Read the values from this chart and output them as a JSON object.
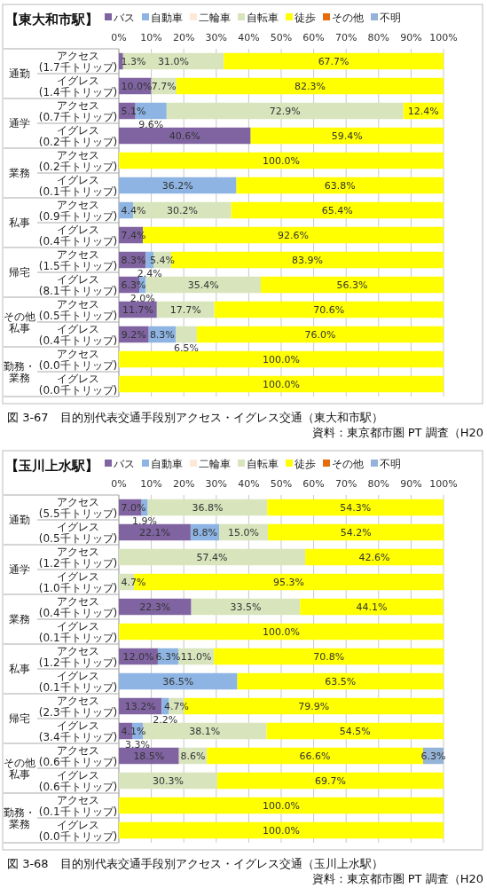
{
  "chart_data": [
    {
      "type": "bar",
      "orientation": "horizontal",
      "stacked": true,
      "title": "【東大和市駅】",
      "legend": "top",
      "grid": "x",
      "xlim": [
        0,
        100
      ],
      "xticks": [
        {
          "value": 0,
          "label": "0%"
        },
        {
          "value": 10,
          "label": "10%"
        },
        {
          "value": 20,
          "label": "20%"
        },
        {
          "value": 30,
          "label": "30%"
        },
        {
          "value": 40,
          "label": "40%"
        },
        {
          "value": 50,
          "label": "50%"
        },
        {
          "value": 60,
          "label": "60%"
        },
        {
          "value": 70,
          "label": "70%"
        },
        {
          "value": 80,
          "label": "80%"
        },
        {
          "value": 90,
          "label": "90%"
        },
        {
          "value": 100,
          "label": "100%"
        }
      ],
      "categories": [
        "アクセス\n(1.7千トリップ)",
        "イグレス\n(1.4千トリップ)",
        "アクセス\n(0.7千トリップ)",
        "イグレス\n(0.2千トリップ)",
        "アクセス\n(0.2千トリップ)",
        "イグレス\n(0.1千トリップ)",
        "アクセス\n(0.9千トリップ)",
        "イグレス\n(0.4千トリップ)",
        "アクセス\n(1.5千トリップ)",
        "イグレス\n(8.1千トリップ)",
        "アクセス\n(0.5千トリップ)",
        "イグレス\n(0.4千トリップ)",
        "アクセス\n(0.0千トリップ)",
        "イグレス\n(0.0千トリップ)"
      ],
      "series": [
        {
          "name": "バス",
          "color": "#8064a2",
          "values": [
            1.3,
            10.0,
            5.1,
            40.6,
            null,
            null,
            null,
            7.4,
            8.3,
            6.3,
            11.7,
            9.2,
            null,
            null
          ],
          "value_labels": [
            "1.3%",
            "10.0%",
            "5.1%",
            "40.6%",
            null,
            null,
            null,
            "7.4%",
            "8.3%",
            "6.3%",
            "11.7%",
            "9.2%",
            null,
            null
          ]
        },
        {
          "name": "自動車",
          "color": "#8db4e2",
          "values": [
            null,
            null,
            9.6,
            null,
            null,
            36.2,
            4.4,
            null,
            2.4,
            2.0,
            null,
            8.3,
            null,
            null
          ],
          "value_labels": [
            null,
            null,
            "9.6%",
            null,
            null,
            "36.2%",
            "4.4%",
            null,
            "2.4%",
            "2.0%",
            null,
            "8.3%",
            null,
            null
          ]
        },
        {
          "name": "二輪車",
          "color": "#fde9d9",
          "values": [
            null,
            null,
            null,
            null,
            null,
            null,
            null,
            null,
            null,
            null,
            null,
            null,
            null,
            null
          ],
          "value_labels": [
            null,
            null,
            null,
            null,
            null,
            null,
            null,
            null,
            null,
            null,
            null,
            null,
            null,
            null
          ]
        },
        {
          "name": "自転車",
          "color": "#d7e4bc",
          "values": [
            31.0,
            7.7,
            72.9,
            null,
            null,
            null,
            30.2,
            null,
            5.4,
            35.4,
            17.7,
            6.5,
            null,
            null
          ],
          "value_labels": [
            "31.0%",
            "7.7%",
            "72.9%",
            null,
            null,
            null,
            "30.2%",
            null,
            "5.4%",
            "35.4%",
            "17.7%",
            "6.5%",
            null,
            null
          ]
        },
        {
          "name": "徒歩",
          "color": "#ffff00",
          "values": [
            67.7,
            82.3,
            12.4,
            59.4,
            100.0,
            63.8,
            65.4,
            92.6,
            83.9,
            56.3,
            70.6,
            76.0,
            100.0,
            100.0
          ],
          "value_labels": [
            "67.7%",
            "82.3%",
            "12.4%",
            "59.4%",
            "100.0%",
            "63.8%",
            "65.4%",
            "92.6%",
            "83.9%",
            "56.3%",
            "70.6%",
            "76.0%",
            "100.0%",
            "100.0%"
          ]
        },
        {
          "name": "その他",
          "color": "#e46c0a",
          "values": [
            null,
            null,
            null,
            null,
            null,
            null,
            null,
            null,
            null,
            null,
            null,
            null,
            null,
            null
          ],
          "value_labels": [
            null,
            null,
            null,
            null,
            null,
            null,
            null,
            null,
            null,
            null,
            null,
            null,
            null,
            null
          ]
        },
        {
          "name": "不明",
          "color": "#95b3d7",
          "values": [
            null,
            null,
            null,
            null,
            null,
            null,
            null,
            null,
            null,
            null,
            null,
            null,
            null,
            null
          ],
          "value_labels": [
            null,
            null,
            null,
            null,
            null,
            null,
            null,
            null,
            null,
            null,
            null,
            null,
            null,
            null
          ]
        }
      ],
      "annotations": [
        "通勤",
        "通学",
        "業務",
        "私事",
        "帰宅",
        "その他私事",
        "勤務・業務",
        "図 3-67　目的別代表交通手段別アクセス・イグレス交通（東大和市駅）",
        "資料：東京都市圏 PT 調査（H20"
      ]
    },
    {
      "type": "bar",
      "orientation": "horizontal",
      "stacked": true,
      "title": "【玉川上水駅】",
      "legend": "top",
      "grid": "x",
      "xlim": [
        0,
        100
      ],
      "xticks": [
        {
          "value": 0,
          "label": "0%"
        },
        {
          "value": 10,
          "label": "10%"
        },
        {
          "value": 20,
          "label": "20%"
        },
        {
          "value": 30,
          "label": "30%"
        },
        {
          "value": 40,
          "label": "40%"
        },
        {
          "value": 50,
          "label": "50%"
        },
        {
          "value": 60,
          "label": "60%"
        },
        {
          "value": 70,
          "label": "70%"
        },
        {
          "value": 80,
          "label": "80%"
        },
        {
          "value": 90,
          "label": "90%"
        },
        {
          "value": 100,
          "label": "100%"
        }
      ],
      "categories": [
        "アクセス\n(5.5千トリップ)",
        "イグレス\n(0.5千トリップ)",
        "アクセス\n(1.2千トリップ)",
        "イグレス\n(1.0千トリップ)",
        "アクセス\n(0.4千トリップ)",
        "イグレス\n(0.1千トリップ)",
        "アクセス\n(1.2千トリップ)",
        "イグレス\n(0.1千トリップ)",
        "アクセス\n(2.3千トリップ)",
        "イグレス\n(3.4千トリップ)",
        "アクセス\n(0.6千トリップ)",
        "イグレス\n(0.6千トリップ)",
        "アクセス\n(0.1千トリップ)",
        "イグレス\n(0.0千トリップ)"
      ],
      "series": [
        {
          "name": "バス",
          "color": "#8064a2",
          "values": [
            7.0,
            22.1,
            null,
            null,
            22.3,
            null,
            12.0,
            null,
            13.2,
            4.1,
            18.5,
            null,
            null,
            null
          ],
          "value_labels": [
            "7.0%",
            "22.1%",
            null,
            null,
            "22.3%",
            null,
            "12.0%",
            null,
            "13.2%",
            "4.1%",
            "18.5%",
            null,
            null,
            null
          ]
        },
        {
          "name": "自動車",
          "color": "#8db4e2",
          "values": [
            1.9,
            8.8,
            null,
            null,
            null,
            null,
            6.3,
            36.5,
            2.2,
            3.3,
            null,
            null,
            null,
            null
          ],
          "value_labels": [
            "1.9%",
            "8.8%",
            null,
            null,
            null,
            null,
            "6.3%",
            "36.5%",
            "2.2%",
            "3.3%",
            null,
            null,
            null,
            null
          ]
        },
        {
          "name": "二輪車",
          "color": "#fde9d9",
          "values": [
            null,
            null,
            null,
            null,
            null,
            null,
            null,
            null,
            null,
            null,
            null,
            null,
            null,
            null
          ],
          "value_labels": [
            null,
            null,
            null,
            null,
            null,
            null,
            null,
            null,
            null,
            null,
            null,
            null,
            null,
            null
          ]
        },
        {
          "name": "自転車",
          "color": "#d7e4bc",
          "values": [
            36.8,
            15.0,
            57.4,
            4.7,
            33.5,
            null,
            11.0,
            null,
            4.7,
            38.1,
            8.6,
            30.3,
            null,
            null
          ],
          "value_labels": [
            "36.8%",
            "15.0%",
            "57.4%",
            "4.7%",
            "33.5%",
            null,
            "11.0%",
            null,
            "4.7%",
            "38.1%",
            "8.6%",
            "30.3%",
            null,
            null
          ]
        },
        {
          "name": "徒歩",
          "color": "#ffff00",
          "values": [
            54.3,
            54.2,
            42.6,
            95.3,
            44.1,
            100.0,
            70.8,
            63.5,
            79.9,
            54.5,
            66.6,
            69.7,
            100.0,
            100.0
          ],
          "value_labels": [
            "54.3%",
            "54.2%",
            "42.6%",
            "95.3%",
            "44.1%",
            "100.0%",
            "70.8%",
            "63.5%",
            "79.9%",
            "54.5%",
            "66.6%",
            "69.7%",
            "100.0%",
            "100.0%"
          ]
        },
        {
          "name": "その他",
          "color": "#e46c0a",
          "values": [
            null,
            null,
            null,
            null,
            null,
            null,
            null,
            null,
            null,
            null,
            null,
            null,
            null,
            null
          ],
          "value_labels": [
            null,
            null,
            null,
            null,
            null,
            null,
            null,
            null,
            null,
            null,
            null,
            null,
            null,
            null
          ]
        },
        {
          "name": "不明",
          "color": "#95b3d7",
          "values": [
            null,
            null,
            null,
            null,
            null,
            null,
            null,
            null,
            null,
            null,
            6.3,
            null,
            null,
            null
          ],
          "value_labels": [
            null,
            null,
            null,
            null,
            null,
            null,
            null,
            null,
            null,
            null,
            "6.3%",
            null,
            null,
            null
          ]
        }
      ],
      "annotations": [
        "通勤",
        "通学",
        "業務",
        "私事",
        "帰宅",
        "その他私事",
        "勤務・業務",
        "図 3-68　目的別代表交通手段別アクセス・イグレス交通（玉川上水駅）",
        "資料：東京都市圏 PT 調査（H20"
      ]
    }
  ]
}
